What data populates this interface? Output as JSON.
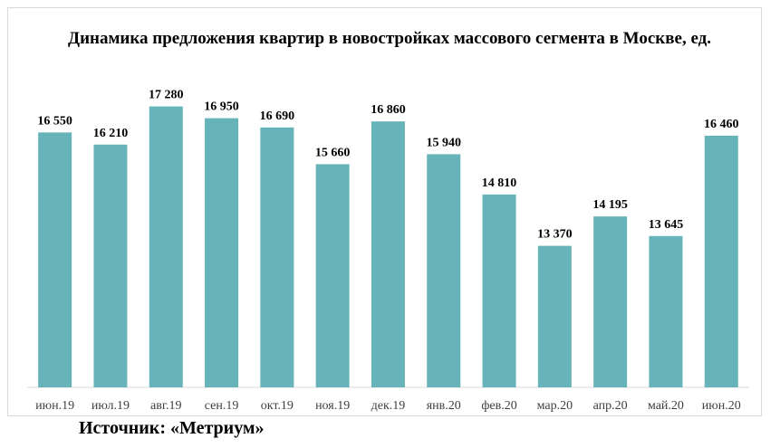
{
  "chart_data": {
    "type": "bar",
    "title": "Динамика предложения квартир в новостройках массового сегмента в Москве, ед.",
    "categories": [
      "июн.19",
      "июл.19",
      "авг.19",
      "сен.19",
      "окт.19",
      "ноя.19",
      "дек.19",
      "янв.20",
      "фев.20",
      "мар.20",
      "апр.20",
      "май.20",
      "июн.20"
    ],
    "values": [
      16550,
      16210,
      17280,
      16950,
      16690,
      15660,
      16860,
      15940,
      14810,
      13370,
      14195,
      13645,
      16460
    ],
    "value_labels": [
      "16 550",
      "16 210",
      "17 280",
      "16 950",
      "16 690",
      "15 660",
      "16 860",
      "15 940",
      "14 810",
      "13 370",
      "14 195",
      "13 645",
      "16 460"
    ],
    "ylim": [
      9400,
      17600
    ],
    "grid": false,
    "legend": "none",
    "bar_color": "#66b4b9"
  },
  "source": "Источник: «Метриум»"
}
